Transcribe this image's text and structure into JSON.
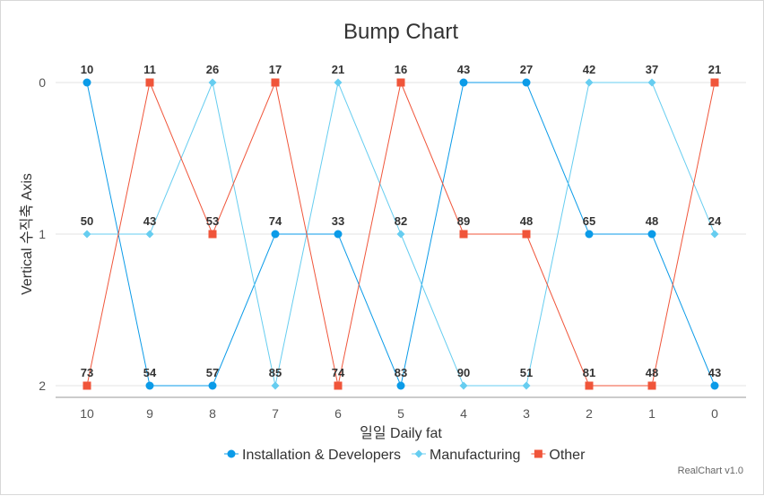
{
  "chart_data": {
    "type": "line",
    "subtype": "bump",
    "title": "Bump Chart",
    "xlabel": "일일 Daily fat",
    "ylabel": "Vertical 수직축 Axis",
    "x": [
      10,
      9,
      8,
      7,
      6,
      5,
      4,
      3,
      2,
      1,
      0
    ],
    "ylim": [
      0,
      2
    ],
    "y_reversed": true,
    "y_ticks": [
      0,
      1,
      2
    ],
    "grid": true,
    "legend": "bottom",
    "series": [
      {
        "name": "Installation & Developers",
        "color": "#0b9be8",
        "marker": "circle",
        "rank": [
          0,
          2,
          2,
          1,
          1,
          2,
          0,
          0,
          1,
          1,
          2
        ],
        "labels": [
          10,
          54,
          57,
          74,
          33,
          83,
          43,
          27,
          65,
          48,
          43
        ]
      },
      {
        "name": "Manufacturing",
        "color": "#66cdf0",
        "marker": "diamond",
        "rank": [
          1,
          1,
          0,
          2,
          0,
          1,
          2,
          2,
          0,
          0,
          1
        ],
        "labels": [
          50,
          43,
          26,
          85,
          21,
          82,
          90,
          51,
          42,
          37,
          24
        ]
      },
      {
        "name": "Other",
        "color": "#f0553a",
        "marker": "square",
        "rank": [
          2,
          0,
          1,
          0,
          2,
          0,
          1,
          1,
          2,
          2,
          0
        ],
        "labels": [
          73,
          11,
          53,
          17,
          74,
          16,
          89,
          48,
          81,
          48,
          21
        ]
      }
    ]
  },
  "credit": "RealChart v1.0"
}
